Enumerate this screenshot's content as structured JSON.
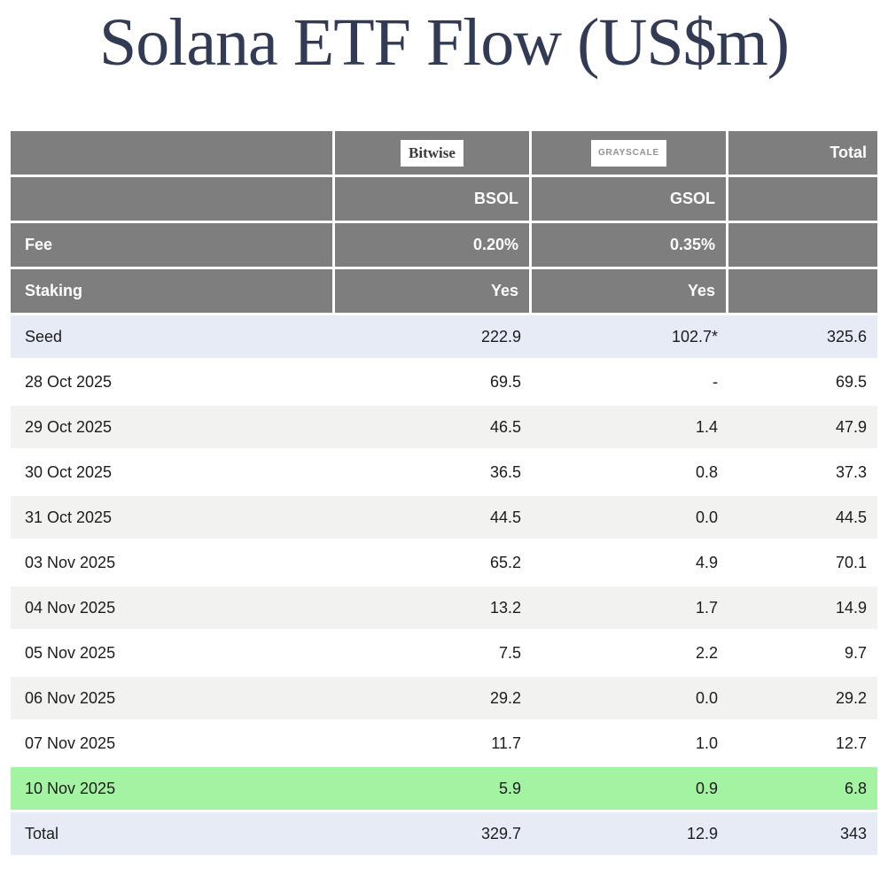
{
  "page": {
    "title": "Solana ETF Flow (US$m)"
  },
  "colors": {
    "header_bg": "#7e7e7e",
    "header_text": "#ffffff",
    "title_text": "#333a54",
    "seed_row_bg": "#e7ebf6",
    "total_row_bg": "#e7ebf6",
    "highlight_row_bg": "#a4f3a2",
    "zebra_alt_bg": "#f2f2f0",
    "grayscale_logo_text": "#929292"
  },
  "table": {
    "logos": {
      "bitwise": "Bitwise",
      "grayscale": "GRAYSCALE"
    },
    "header": {
      "total_label": "Total",
      "tickers": {
        "bsol": "BSOL",
        "gsol": "GSOL"
      },
      "fee": {
        "label": "Fee",
        "bsol": "0.20%",
        "gsol": "0.35%"
      },
      "staking": {
        "label": "Staking",
        "bsol": "Yes",
        "gsol": "Yes"
      }
    },
    "rows": [
      {
        "label": "Seed",
        "bsol": "222.9",
        "gsol": "102.7*",
        "total": "325.6",
        "style": "seed"
      },
      {
        "label": "28 Oct 2025",
        "bsol": "69.5",
        "gsol": "-",
        "total": "69.5",
        "style": "white"
      },
      {
        "label": "29 Oct 2025",
        "bsol": "46.5",
        "gsol": "1.4",
        "total": "47.9",
        "style": "alt"
      },
      {
        "label": "30 Oct 2025",
        "bsol": "36.5",
        "gsol": "0.8",
        "total": "37.3",
        "style": "white"
      },
      {
        "label": "31 Oct 2025",
        "bsol": "44.5",
        "gsol": "0.0",
        "total": "44.5",
        "style": "alt"
      },
      {
        "label": "03 Nov 2025",
        "bsol": "65.2",
        "gsol": "4.9",
        "total": "70.1",
        "style": "white"
      },
      {
        "label": "04 Nov 2025",
        "bsol": "13.2",
        "gsol": "1.7",
        "total": "14.9",
        "style": "alt"
      },
      {
        "label": "05 Nov 2025",
        "bsol": "7.5",
        "gsol": "2.2",
        "total": "9.7",
        "style": "white"
      },
      {
        "label": "06 Nov 2025",
        "bsol": "29.2",
        "gsol": "0.0",
        "total": "29.2",
        "style": "alt"
      },
      {
        "label": "07 Nov 2025",
        "bsol": "11.7",
        "gsol": "1.0",
        "total": "12.7",
        "style": "white"
      },
      {
        "label": "10 Nov 2025",
        "bsol": "5.9",
        "gsol": "0.9",
        "total": "6.8",
        "style": "highlight"
      },
      {
        "label": "Total",
        "bsol": "329.7",
        "gsol": "12.9",
        "total": "343",
        "style": "total"
      }
    ]
  },
  "chart_data": {
    "type": "table",
    "title": "Solana ETF Flow (US$m)",
    "columns": [
      "",
      "Bitwise BSOL",
      "Grayscale GSOL",
      "Total"
    ],
    "fund_meta": {
      "fee": {
        "BSOL": "0.20%",
        "GSOL": "0.35%"
      },
      "staking": {
        "BSOL": "Yes",
        "GSOL": "Yes"
      }
    },
    "rows": [
      [
        "Seed",
        222.9,
        "102.7*",
        325.6
      ],
      [
        "28 Oct 2025",
        69.5,
        "-",
        69.5
      ],
      [
        "29 Oct 2025",
        46.5,
        1.4,
        47.9
      ],
      [
        "30 Oct 2025",
        36.5,
        0.8,
        37.3
      ],
      [
        "31 Oct 2025",
        44.5,
        0.0,
        44.5
      ],
      [
        "03 Nov 2025",
        65.2,
        4.9,
        70.1
      ],
      [
        "04 Nov 2025",
        13.2,
        1.7,
        14.9
      ],
      [
        "05 Nov 2025",
        7.5,
        2.2,
        9.7
      ],
      [
        "06 Nov 2025",
        29.2,
        0.0,
        29.2
      ],
      [
        "07 Nov 2025",
        11.7,
        1.0,
        12.7
      ],
      [
        "10 Nov 2025",
        5.9,
        0.9,
        6.8
      ],
      [
        "Total",
        329.7,
        12.9,
        343
      ]
    ],
    "highlighted_row": "10 Nov 2025",
    "footnote_marker": "* on Grayscale seed value"
  }
}
